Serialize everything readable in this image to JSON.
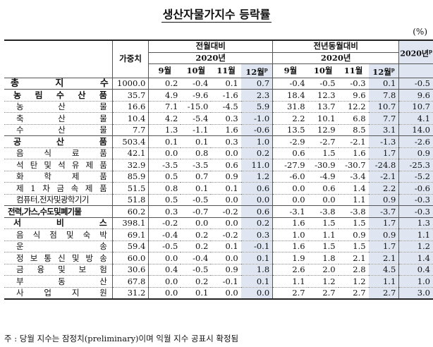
{
  "title": "생산자물가지수 등락률",
  "unit": "(%)",
  "header": {
    "weight": "가중치",
    "mom": "전월대비",
    "yoy": "전년동월대비",
    "year_mom": "2020년",
    "year_yoy": "2020년",
    "annual": "2020년",
    "annual_sup": "p",
    "months": [
      "9월",
      "10월",
      "11월",
      "12월"
    ],
    "prelim_sup": "p"
  },
  "rows": [
    {
      "label": "총 지 수",
      "level": 0,
      "weight": "1000.0",
      "mom": [
        "0.2",
        "-0.4",
        "0.1",
        "0.7"
      ],
      "yoy": [
        "-0.4",
        "-0.5",
        "-0.3",
        "0.1"
      ],
      "annual": "-0.5"
    },
    {
      "label": "농 림 수 산 품",
      "level": 1,
      "weight": "35.7",
      "mom": [
        "4.9",
        "-9.6",
        "-1.6",
        "2.3"
      ],
      "yoy": [
        "18.4",
        "12.3",
        "9.6",
        "7.8"
      ],
      "annual": "9.6"
    },
    {
      "label": "농 산 물",
      "level": 2,
      "weight": "16.6",
      "mom": [
        "7.1",
        "-15.0",
        "-4.5",
        "5.9"
      ],
      "yoy": [
        "31.8",
        "13.7",
        "12.2",
        "10.7"
      ],
      "annual": "10.7"
    },
    {
      "label": "축 산 물",
      "level": 2,
      "weight": "10.4",
      "mom": [
        "4.2",
        "-5.4",
        "0.3",
        "-1.0"
      ],
      "yoy": [
        "2.2",
        "10.1",
        "6.8",
        "7.7"
      ],
      "annual": "4.1"
    },
    {
      "label": "수 산 물",
      "level": 2,
      "weight": "7.7",
      "mom": [
        "1.3",
        "-1.1",
        "1.6",
        "-0.6"
      ],
      "yoy": [
        "13.5",
        "12.9",
        "8.5",
        "3.1"
      ],
      "annual": "14.0"
    },
    {
      "label": "공 산 품",
      "level": 1,
      "weight": "503.4",
      "mom": [
        "0.1",
        "0.1",
        "0.3",
        "1.0"
      ],
      "yoy": [
        "-2.9",
        "-2.7",
        "-2.1",
        "-1.3"
      ],
      "annual": "-2.6"
    },
    {
      "label": "음 식 료 품",
      "level": 2,
      "weight": "42.1",
      "mom": [
        "0.0",
        "0.8",
        "0.0",
        "0.2"
      ],
      "yoy": [
        "0.6",
        "1.5",
        "1.6",
        "1.7"
      ],
      "annual": "0.9"
    },
    {
      "label": "석 탄 및 석 유 제 품",
      "level": 2,
      "weight": "32.9",
      "mom": [
        "-3.5",
        "-3.5",
        "0.6",
        "11.0"
      ],
      "yoy": [
        "-27.9",
        "-30.9",
        "-30.7",
        "-24.8"
      ],
      "annual": "-25.3"
    },
    {
      "label": "화 학 제 품",
      "level": 2,
      "weight": "85.9",
      "mom": [
        "0.5",
        "0.7",
        "0.9",
        "1.2"
      ],
      "yoy": [
        "-6.0",
        "-4.9",
        "-3.4",
        "-2.1"
      ],
      "annual": "-5.2"
    },
    {
      "label": "제 1 차 금 속 제 품",
      "level": 2,
      "weight": "51.5",
      "mom": [
        "0.8",
        "0.1",
        "0.1",
        "0.6"
      ],
      "yoy": [
        "0.0",
        "0.6",
        "1.4",
        "2.2"
      ],
      "annual": "-0.6"
    },
    {
      "label": "컴퓨터,전자및광학기기",
      "level": 2,
      "weight": "51.8",
      "mom": [
        "0.5",
        "-0.5",
        "0.0",
        "0.0"
      ],
      "yoy": [
        "0.0",
        "0.0",
        "1.1",
        "0.9"
      ],
      "annual": "-0.3"
    },
    {
      "label": "전력,가스,수도및폐기물",
      "level": 1,
      "weight": "60.2",
      "mom": [
        "0.3",
        "-0.7",
        "-0.2",
        "0.6"
      ],
      "yoy": [
        "-3.1",
        "-3.8",
        "-3.8",
        "-3.7"
      ],
      "annual": "-0.3"
    },
    {
      "label": "서 비 스",
      "level": 1,
      "weight": "398.1",
      "mom": [
        "-0.2",
        "0.0",
        "0.0",
        "0.2"
      ],
      "yoy": [
        "1.6",
        "1.5",
        "1.5",
        "1.7"
      ],
      "annual": "1.3"
    },
    {
      "label": "음 식 점 및 숙 박",
      "level": 2,
      "weight": "69.1",
      "mom": [
        "-0.4",
        "0.2",
        "-0.2",
        "0.3"
      ],
      "yoy": [
        "1.0",
        "1.1",
        "0.9",
        "0.9"
      ],
      "annual": "1.1"
    },
    {
      "label": "운 송",
      "level": 2,
      "weight": "59.4",
      "mom": [
        "-0.5",
        "0.2",
        "0.1",
        "-0.1"
      ],
      "yoy": [
        "1.6",
        "1.5",
        "1.5",
        "1.7"
      ],
      "annual": "1.2"
    },
    {
      "label": "정 보 통 신 및 방 송",
      "level": 2,
      "weight": "60.0",
      "mom": [
        "0.0",
        "-0.4",
        "0.0",
        "0.1"
      ],
      "yoy": [
        "1.9",
        "1.8",
        "2.1",
        "2.1"
      ],
      "annual": "1.4"
    },
    {
      "label": "금 융 및 보 험",
      "level": 2,
      "weight": "30.6",
      "mom": [
        "0.4",
        "-0.5",
        "0.9",
        "1.8"
      ],
      "yoy": [
        "2.6",
        "2.0",
        "2.8",
        "4.5"
      ],
      "annual": "0.4"
    },
    {
      "label": "부 동 산",
      "level": 2,
      "weight": "67.8",
      "mom": [
        "0.0",
        "0.2",
        "-0.1",
        "0.1"
      ],
      "yoy": [
        "1.1",
        "1.2",
        "1.2",
        "1.1"
      ],
      "annual": "1.0"
    },
    {
      "label": "사 업 지 원",
      "level": 2,
      "weight": "31.2",
      "mom": [
        "0.0",
        "0.1",
        "0.0",
        "0.0"
      ],
      "yoy": [
        "2.7",
        "2.7",
        "2.7",
        "2.7"
      ],
      "annual": "3.0"
    }
  ],
  "footnote": "주 : 당월 지수는 잠정치(preliminary)이며 익월 지수 공표시 확정됨"
}
